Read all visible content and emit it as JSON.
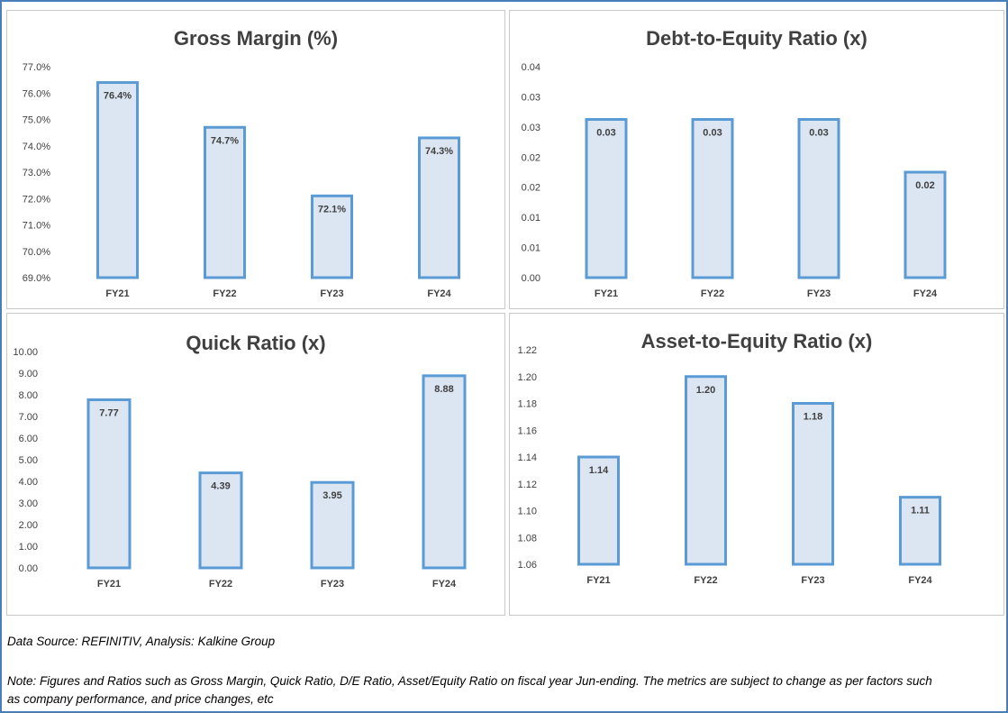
{
  "chart_data": [
    {
      "type": "bar",
      "title": "Gross Margin (%)",
      "categories": [
        "FY21",
        "FY22",
        "FY23",
        "FY24"
      ],
      "values": [
        76.4,
        74.7,
        72.1,
        74.3
      ],
      "value_labels": [
        "76.4%",
        "74.7%",
        "72.1%",
        "74.3%"
      ],
      "ylim": [
        69.0,
        77.0
      ],
      "yticks": [
        "69.0%",
        "70.0%",
        "71.0%",
        "72.0%",
        "73.0%",
        "74.0%",
        "75.0%",
        "76.0%",
        "77.0%"
      ],
      "xlabel": "",
      "ylabel": "",
      "grid": false,
      "colors": {
        "fill": "#dce6f2",
        "stroke": "#5b9bd5"
      }
    },
    {
      "type": "bar",
      "title": "Debt-to-Equity Ratio (x)",
      "categories": [
        "FY21",
        "FY22",
        "FY23",
        "FY24"
      ],
      "values": [
        0.03,
        0.03,
        0.03,
        0.02
      ],
      "value_labels": [
        "0.03",
        "0.03",
        "0.03",
        "0.02"
      ],
      "ylim": [
        0.0,
        0.04
      ],
      "yticks": [
        "0.00",
        "0.01",
        "0.01",
        "0.02",
        "0.02",
        "0.03",
        "0.03",
        "0.04"
      ],
      "xlabel": "",
      "ylabel": "",
      "grid": false,
      "colors": {
        "fill": "#dce6f2",
        "stroke": "#5b9bd5"
      }
    },
    {
      "type": "bar",
      "title": "Quick Ratio (x)",
      "categories": [
        "FY21",
        "FY22",
        "FY23",
        "FY24"
      ],
      "values": [
        7.77,
        4.39,
        3.95,
        8.88
      ],
      "value_labels": [
        "7.77",
        "4.39",
        "3.95",
        "8.88"
      ],
      "ylim": [
        0.0,
        10.0
      ],
      "yticks": [
        "0.00",
        "1.00",
        "2.00",
        "3.00",
        "4.00",
        "5.00",
        "6.00",
        "7.00",
        "8.00",
        "9.00",
        "10.00"
      ],
      "xlabel": "",
      "ylabel": "",
      "grid": false,
      "colors": {
        "fill": "#dce6f2",
        "stroke": "#5b9bd5"
      }
    },
    {
      "type": "bar",
      "title": "Asset-to-Equity Ratio (x)",
      "categories": [
        "FY21",
        "FY22",
        "FY23",
        "FY24"
      ],
      "values": [
        1.14,
        1.2,
        1.18,
        1.11
      ],
      "value_labels": [
        "1.14",
        "1.20",
        "1.18",
        "1.11"
      ],
      "ylim": [
        1.06,
        1.22
      ],
      "yticks": [
        "1.06",
        "1.08",
        "1.10",
        "1.12",
        "1.14",
        "1.16",
        "1.18",
        "1.20",
        "1.22"
      ],
      "xlabel": "",
      "ylabel": "",
      "grid": false,
      "colors": {
        "fill": "#dce6f2",
        "stroke": "#5b9bd5"
      }
    }
  ],
  "footer": {
    "source": "Data Source: REFINITIV, Analysis: Kalkine Group",
    "note_line1": "Note: Figures and Ratios such as Gross Margin, Quick Ratio, D/E Ratio, Asset/Equity Ratio on fiscal year Jun-ending. The metrics are subject to change as per factors such",
    "note_line2": "as company performance, and price changes, etc"
  }
}
